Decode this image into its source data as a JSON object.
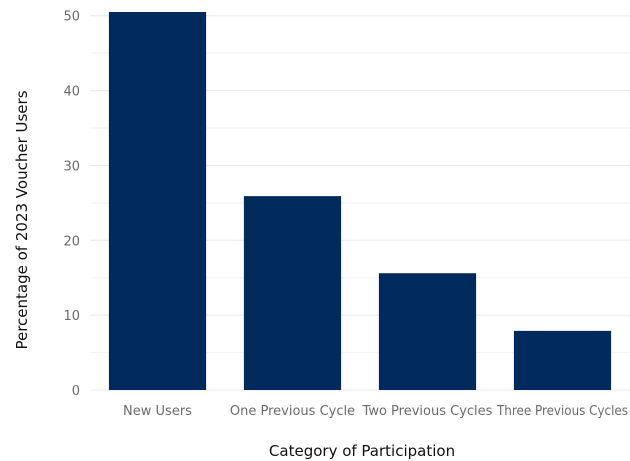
{
  "chart_data": {
    "type": "bar",
    "categories": [
      "New Users",
      "One Previous Cycle",
      "Two Previous Cycles",
      "Three Previous Cycles"
    ],
    "values": [
      50.5,
      25.9,
      15.6,
      7.9
    ],
    "xlabel": "Category of Participation",
    "ylabel": "Percentage of 2023 Voucher Users",
    "ylim": [
      0,
      50.5
    ],
    "yticks": [
      0,
      10,
      20,
      30,
      40,
      50
    ],
    "grid": true,
    "legend": "none",
    "colors": {
      "bar": "#002a5c",
      "grid": "#e8e8e8",
      "tick_text": "#6b6b6b",
      "axis_title": "#111111"
    }
  }
}
